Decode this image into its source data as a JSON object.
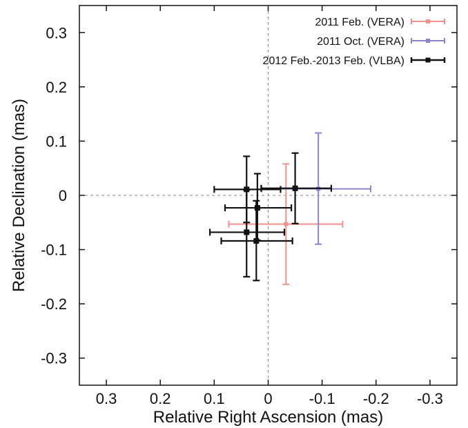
{
  "chart_data": {
    "type": "scatter",
    "title": "",
    "xlabel": "Relative Right Ascension (mas)",
    "ylabel": "Relative Declination (mas)",
    "xlim": [
      0.35,
      -0.35
    ],
    "ylim": [
      -0.35,
      0.35
    ],
    "x_reversed": true,
    "xticks": [
      0.3,
      0.2,
      0.1,
      0,
      -0.1,
      -0.2,
      -0.3
    ],
    "yticks": [
      0.3,
      0.2,
      0.1,
      0,
      -0.1,
      -0.2,
      -0.3
    ],
    "xtick_labels": [
      "0.3",
      "0.2",
      "0.1",
      "0",
      "-0.1",
      "-0.2",
      "-0.3"
    ],
    "ytick_labels": [
      "0.3",
      "0.2",
      "0.1",
      "0",
      "-0.1",
      "-0.2",
      "-0.3"
    ],
    "grid": false,
    "reference_lines": [
      {
        "axis": "x",
        "value": 0,
        "style": "dashed"
      },
      {
        "axis": "y",
        "value": 0,
        "style": "dashed"
      }
    ],
    "legend_position": "top-right",
    "series": [
      {
        "name": "2011 Feb. (VERA)",
        "color": "#f4908b",
        "points": [
          {
            "x": -0.033,
            "y": -0.053,
            "x_lo": 0.073,
            "x_hi": -0.138,
            "y_lo": -0.164,
            "y_hi": 0.058
          }
        ]
      },
      {
        "name": "2011 Oct. (VERA)",
        "color": "#8a84d0",
        "points": [
          {
            "x": -0.093,
            "y": 0.012,
            "x_lo": 0.012,
            "x_hi": -0.19,
            "y_lo": -0.09,
            "y_hi": 0.115
          }
        ]
      },
      {
        "name": "2012 Feb.-2013 Feb. (VLBA)",
        "color": "#111111",
        "points": [
          {
            "x": 0.04,
            "y": 0.011,
            "x_lo": 0.1,
            "x_hi": -0.023,
            "y_lo": -0.05,
            "y_hi": 0.072
          },
          {
            "x": -0.05,
            "y": 0.013,
            "x_lo": 0.013,
            "x_hi": -0.117,
            "y_lo": -0.052,
            "y_hi": 0.078
          },
          {
            "x": 0.02,
            "y": -0.023,
            "x_lo": 0.08,
            "x_hi": -0.043,
            "y_lo": -0.083,
            "y_hi": 0.04
          },
          {
            "x": 0.04,
            "y": -0.068,
            "x_lo": 0.108,
            "x_hi": -0.03,
            "y_lo": -0.15,
            "y_hi": 0.01
          },
          {
            "x": 0.022,
            "y": -0.084,
            "x_lo": 0.087,
            "x_hi": -0.045,
            "y_lo": -0.157,
            "y_hi": -0.01
          }
        ]
      }
    ]
  }
}
